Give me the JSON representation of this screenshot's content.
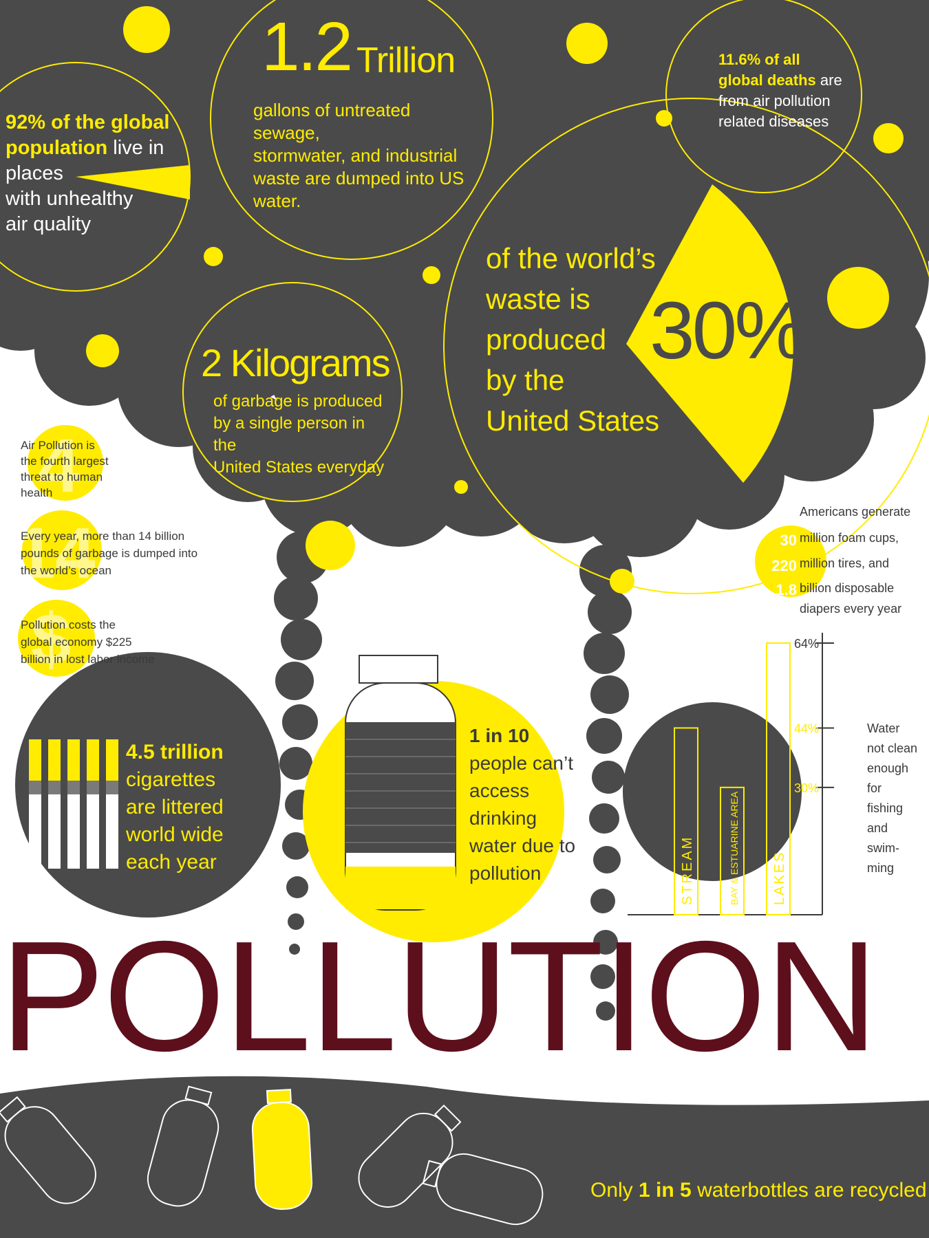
{
  "colors": {
    "dark_gray": "#4a4a4a",
    "yellow": "#ffec00",
    "white": "#ffffff",
    "maroon": "#5e0f1c"
  },
  "title": "POLLUTION",
  "stats": {
    "population": {
      "bold": "92% of the global population",
      "rest": " live in places with unhealthy air quality",
      "lines": [
        "92% of the global",
        "population",
        " live in",
        "places",
        "with unhealthy",
        "air quality"
      ]
    },
    "sewage": {
      "big": "1.2",
      "unit": "Trillion",
      "lines": [
        "gallons of untreated sewage,",
        "stormwater, and industrial",
        "waste are dumped into US",
        "water."
      ]
    },
    "deaths": {
      "lines": [
        "11.6% of all",
        "global deaths",
        " are",
        "from air pollution",
        "related diseases"
      ]
    },
    "waste": {
      "pct": "30%",
      "fraction": 0.3,
      "lines": [
        "of the world’s",
        "waste is",
        "produced",
        "by the",
        "United States"
      ]
    },
    "garbage": {
      "big": "2 Kilograms",
      "lines": [
        "of garbage is produced",
        "by a single person in the",
        "United States everyday"
      ]
    },
    "facts": [
      {
        "icon_text": "4",
        "lines": [
          "Air Pollution is",
          "the fourth largest",
          "threat to human",
          "health"
        ]
      },
      {
        "icon_text": "14",
        "lines": [
          "Every year, more than 14 billion",
          "pounds of garbage is dumped into",
          "the world’s ocean"
        ]
      },
      {
        "icon_text": "$",
        "lines": [
          "Pollution costs the",
          "global economy $225",
          "billion in lost labor income"
        ]
      }
    ],
    "americans": {
      "header": "Americans generate",
      "rows": [
        {
          "num": "30",
          "label": "million foam cups,"
        },
        {
          "num": "220",
          "label": "million tires, and"
        },
        {
          "num": "1.8",
          "label": "billion disposable"
        }
      ],
      "footer": "diapers every year"
    },
    "cigarettes": {
      "lines": [
        "4.5 trillion",
        "cigarettes",
        "are littered",
        "world wide",
        "each year"
      ]
    },
    "water_access": {
      "bold": "1 in 10",
      "lines": [
        "people can’t",
        "access",
        "drinking",
        "water due to",
        "pollution"
      ],
      "fraction": 0.1
    },
    "recycle": {
      "pre": "Only ",
      "bold": "1 in 5",
      "post": " waterbottles are recycled",
      "fraction": 0.2
    }
  },
  "chart_data": {
    "type": "bar",
    "categories": [
      "STREAM",
      "BAY & ESTUARINE AREA",
      "LAKES"
    ],
    "values": [
      44,
      30,
      64
    ],
    "tick_labels": [
      "64%",
      "44%",
      "30%"
    ],
    "side_label": [
      "Water",
      "not clean",
      "enough",
      "for",
      "fishing",
      "and",
      "swim-",
      "ming"
    ]
  }
}
